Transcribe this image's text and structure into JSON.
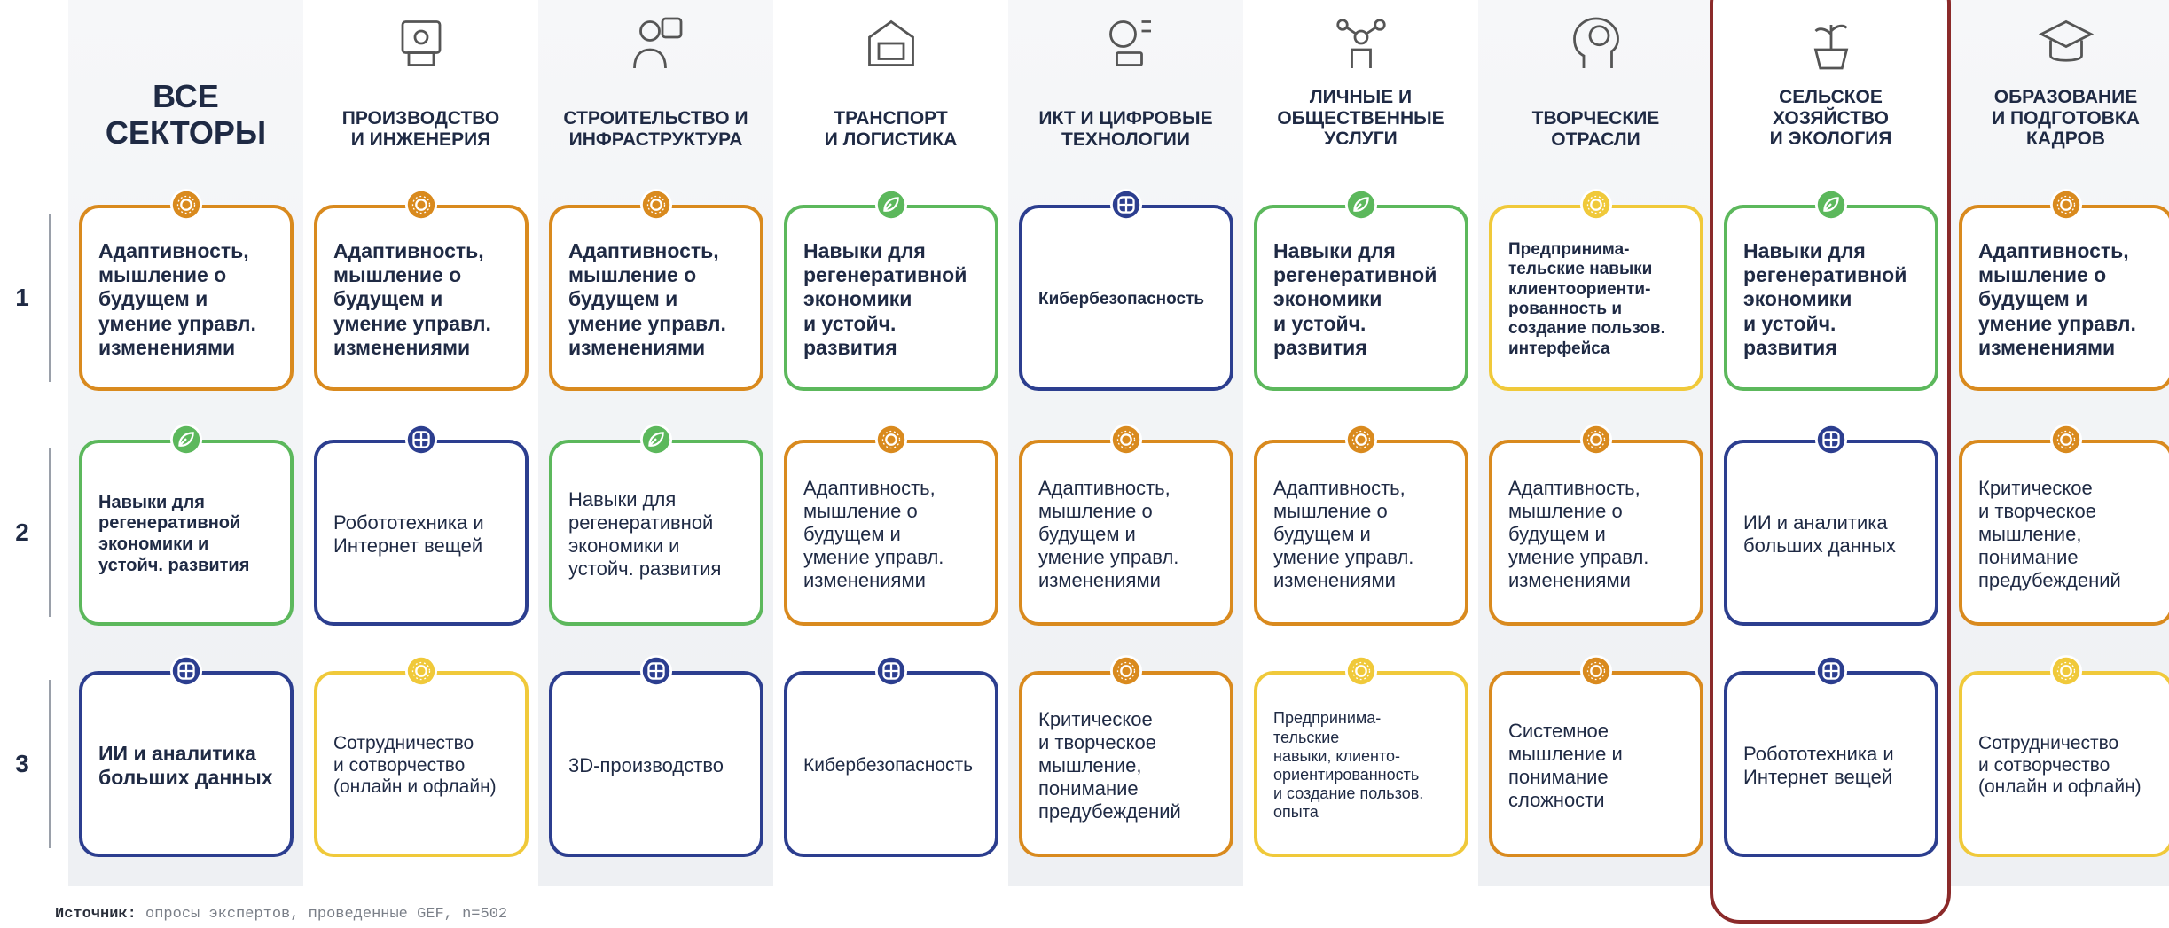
{
  "columns": [
    {
      "header": "ВСЕ\nСЕКТОРЫ",
      "cards": [
        {
          "text": "Адаптивность,\nмышление о\nбудущем и\nумение управл.\nизменениями",
          "color": "#d98a1e"
        },
        {
          "text": "Навыки для\nрегенеративной\nэкономики и\nустойч. развития",
          "color": "#5cb85c"
        },
        {
          "text": "ИИ и аналитика\nбольших данных",
          "color": "#2c3e8f"
        }
      ]
    },
    {
      "header": "ПРОИЗВОДСТВО\nИ ИНЖЕНЕРИЯ",
      "cards": [
        {
          "text": "Адаптивность,\nмышление о\nбудущем и\nумение управл.\nизменениями",
          "color": "#d98a1e"
        },
        {
          "text": "Робототехника и\nИнтернет вещей",
          "color": "#2c3e8f"
        },
        {
          "text": "Сотрудничество\nи сотворчество\n(онлайн и офлайн)",
          "color": "#f0c93a"
        }
      ]
    },
    {
      "header": "СТРОИТЕЛЬСТВО И\nИНФРАСТРУКТУРА",
      "cards": [
        {
          "text": "Адаптивность,\nмышление о\nбудущем и\nумение управл.\nизменениями",
          "color": "#d98a1e"
        },
        {
          "text": "Навыки для\nрегенеративной\nэкономики и\nустойч. развития",
          "color": "#5cb85c"
        },
        {
          "text": "3D-производство",
          "color": "#2c3e8f"
        }
      ]
    },
    {
      "header": "ТРАНСПОРТ\nИ ЛОГИСТИКА",
      "cards": [
        {
          "text": "Навыки для\nрегенеративной\nэкономики\nи устойч.\nразвития",
          "color": "#5cb85c"
        },
        {
          "text": "Адаптивность,\nмышление о\nбудущем и\nумение управл.\nизменениями",
          "color": "#d98a1e"
        },
        {
          "text": "Кибербезопасность",
          "color": "#2c3e8f"
        }
      ]
    },
    {
      "header": "ИКТ И ЦИФРОВЫЕ\nТЕХНОЛОГИИ",
      "cards": [
        {
          "text": "Кибербезопасность",
          "color": "#2c3e8f"
        },
        {
          "text": "Адаптивность,\nмышление о\nбудущем и\nумение управл.\nизменениями",
          "color": "#d98a1e"
        },
        {
          "text": "Критическое\nи творческое\nмышление,\nпонимание\nпредубеждений",
          "color": "#d98a1e"
        }
      ]
    },
    {
      "header": "ЛИЧНЫЕ И\nОБЩЕСТВЕННЫЕ\nУСЛУГИ",
      "cards": [
        {
          "text": "Навыки для\nрегенеративной\nэкономики\nи устойч.\nразвития",
          "color": "#5cb85c"
        },
        {
          "text": "Адаптивность,\nмышление о\nбудущем и\nумение управл.\nизменениями",
          "color": "#d98a1e"
        },
        {
          "text": "Предпринима-\nтельские\nнавыки, клиенто-\nориентированность\nи создание пользов.\nопыта",
          "color": "#f0c93a"
        }
      ]
    },
    {
      "header": "ТВОРЧЕСКИЕ\nОТРАСЛИ",
      "cards": [
        {
          "text": "Предпринима-\nтельские навыки\nклиентоориенти-\nрованность и\nсоздание пользов.\nинтерфейса",
          "color": "#f0c93a"
        },
        {
          "text": "Адаптивность,\nмышление о\nбудущем и\nумение управл.\nизменениями",
          "color": "#d98a1e"
        },
        {
          "text": "Системное\nмышление и\nпонимание\nсложности",
          "color": "#d98a1e"
        }
      ]
    },
    {
      "header": "СЕЛЬСКОЕ\nХОЗЯЙСТВО\nИ ЭКОЛОГИЯ",
      "cards": [
        {
          "text": "Навыки для\nрегенеративной\nэкономики\nи устойч.\nразвития",
          "color": "#5cb85c"
        },
        {
          "text": "ИИ и аналитика\nбольших данных",
          "color": "#2c3e8f"
        },
        {
          "text": "Робототехника и\nИнтернет вещей",
          "color": "#2c3e8f"
        }
      ]
    },
    {
      "header": "ОБРАЗОВАНИЕ\nИ ПОДГОТОВКА\nКАДРОВ",
      "cards": [
        {
          "text": "Адаптивность,\nмышление о\nбудущем и\nумение управл.\nизменениями",
          "color": "#d98a1e"
        },
        {
          "text": "Критическое\nи творческое\nмышление,\nпонимание\nпредубеждений",
          "color": "#d98a1e"
        },
        {
          "text": "Сотрудничество\nи сотворчество\n(онлайн и офлайн)",
          "color": "#f0c93a"
        }
      ]
    }
  ],
  "rows": [
    "1",
    "2",
    "3"
  ],
  "source": {
    "label": "Источник:",
    "text": "опросы экспертов, проведенные GEF, n=502"
  }
}
